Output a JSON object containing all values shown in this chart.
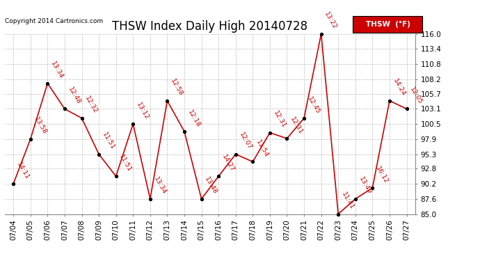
{
  "title": "THSW Index Daily High 20140728",
  "copyright": "Copyright 2014 Cartronics.com",
  "legend_label": "THSW  (°F)",
  "dates": [
    "07/04",
    "07/05",
    "07/06",
    "07/07",
    "07/08",
    "07/09",
    "07/10",
    "07/11",
    "07/12",
    "07/13",
    "07/14",
    "07/15",
    "07/16",
    "07/17",
    "07/18",
    "07/19",
    "07/20",
    "07/21",
    "07/22",
    "07/23",
    "07/24",
    "07/25",
    "07/26",
    "07/27"
  ],
  "values": [
    90.2,
    97.9,
    107.5,
    103.1,
    101.5,
    95.3,
    91.5,
    100.5,
    87.6,
    104.5,
    99.2,
    87.6,
    91.5,
    95.3,
    94.0,
    99.0,
    98.0,
    101.5,
    116.0,
    85.0,
    87.6,
    89.5,
    104.5,
    103.1
  ],
  "time_labels": [
    "14:11",
    "13:58",
    "13:34",
    "12:48",
    "12:32",
    "11:51",
    "11:51",
    "13:12",
    "13:34",
    "12:58",
    "12:18",
    "13:48",
    "14:27",
    "12:07",
    "11:54",
    "12:31",
    "12:31",
    "12:45",
    "13:22",
    "11:41",
    "13:49",
    "16:12",
    "14:24",
    "12:05"
  ],
  "ylim": [
    85.0,
    116.0
  ],
  "yticks": [
    85.0,
    87.6,
    90.2,
    92.8,
    95.3,
    97.9,
    100.5,
    103.1,
    105.7,
    108.2,
    110.8,
    113.4,
    116.0
  ],
  "line_color": "#cc0000",
  "marker_color": "#000000",
  "label_color": "#cc0000",
  "bg_color": "#ffffff",
  "grid_color": "#bbbbbb",
  "title_fontsize": 12,
  "tick_fontsize": 7.5,
  "label_fontsize": 6.8
}
